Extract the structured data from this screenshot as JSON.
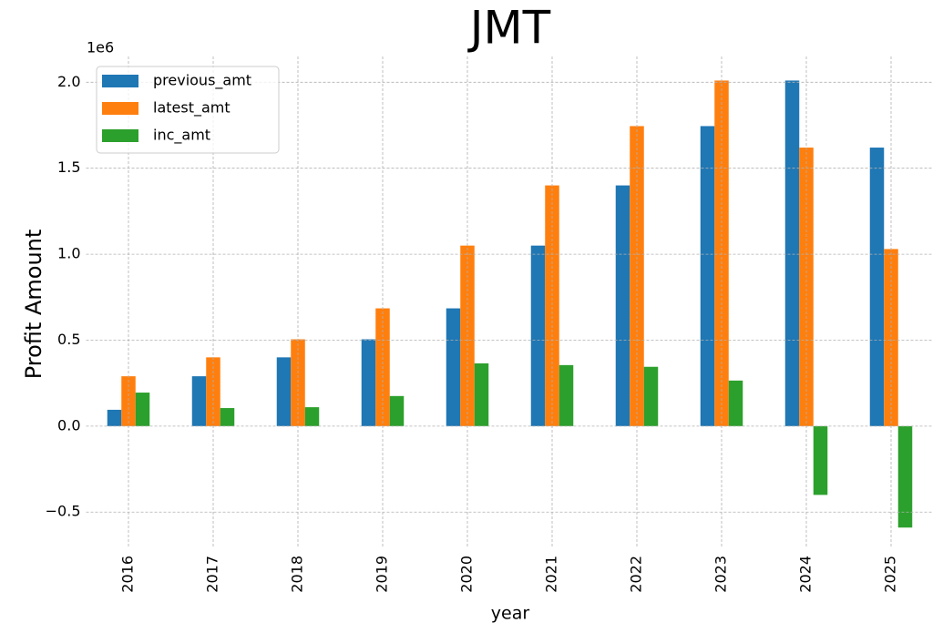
{
  "chart_data": {
    "type": "bar",
    "title": "JMT",
    "y_label": "Profit Amount",
    "x_label": "year",
    "y_offset_label": "1e6",
    "categories": [
      "2016",
      "2017",
      "2018",
      "2019",
      "2020",
      "2021",
      "2022",
      "2023",
      "2024",
      "2025"
    ],
    "series": [
      {
        "name": "previous_amt",
        "color": "#1f77b4",
        "values": [
          0.095,
          0.29,
          0.4,
          0.505,
          0.685,
          1.05,
          1.4,
          1.745,
          2.01,
          1.62
        ]
      },
      {
        "name": "latest_amt",
        "color": "#ff7f0e",
        "values": [
          0.29,
          0.4,
          0.505,
          0.685,
          1.05,
          1.4,
          1.745,
          2.01,
          1.62,
          1.03
        ]
      },
      {
        "name": "inc_amt",
        "color": "#2ca02c",
        "values": [
          0.195,
          0.105,
          0.11,
          0.175,
          0.365,
          0.355,
          0.345,
          0.265,
          -0.4,
          -0.59
        ]
      }
    ],
    "ylim": [
      -0.7,
      2.15
    ],
    "yticks": [
      {
        "value": -0.5,
        "label": "−0.5"
      },
      {
        "value": 0,
        "label": "0.0"
      },
      {
        "value": 0.5,
        "label": "0.5"
      },
      {
        "value": 1,
        "label": "1.0"
      },
      {
        "value": 1.5,
        "label": "1.5"
      },
      {
        "value": 2,
        "label": "2.0"
      }
    ],
    "grid": true,
    "legend": "upper-left"
  }
}
